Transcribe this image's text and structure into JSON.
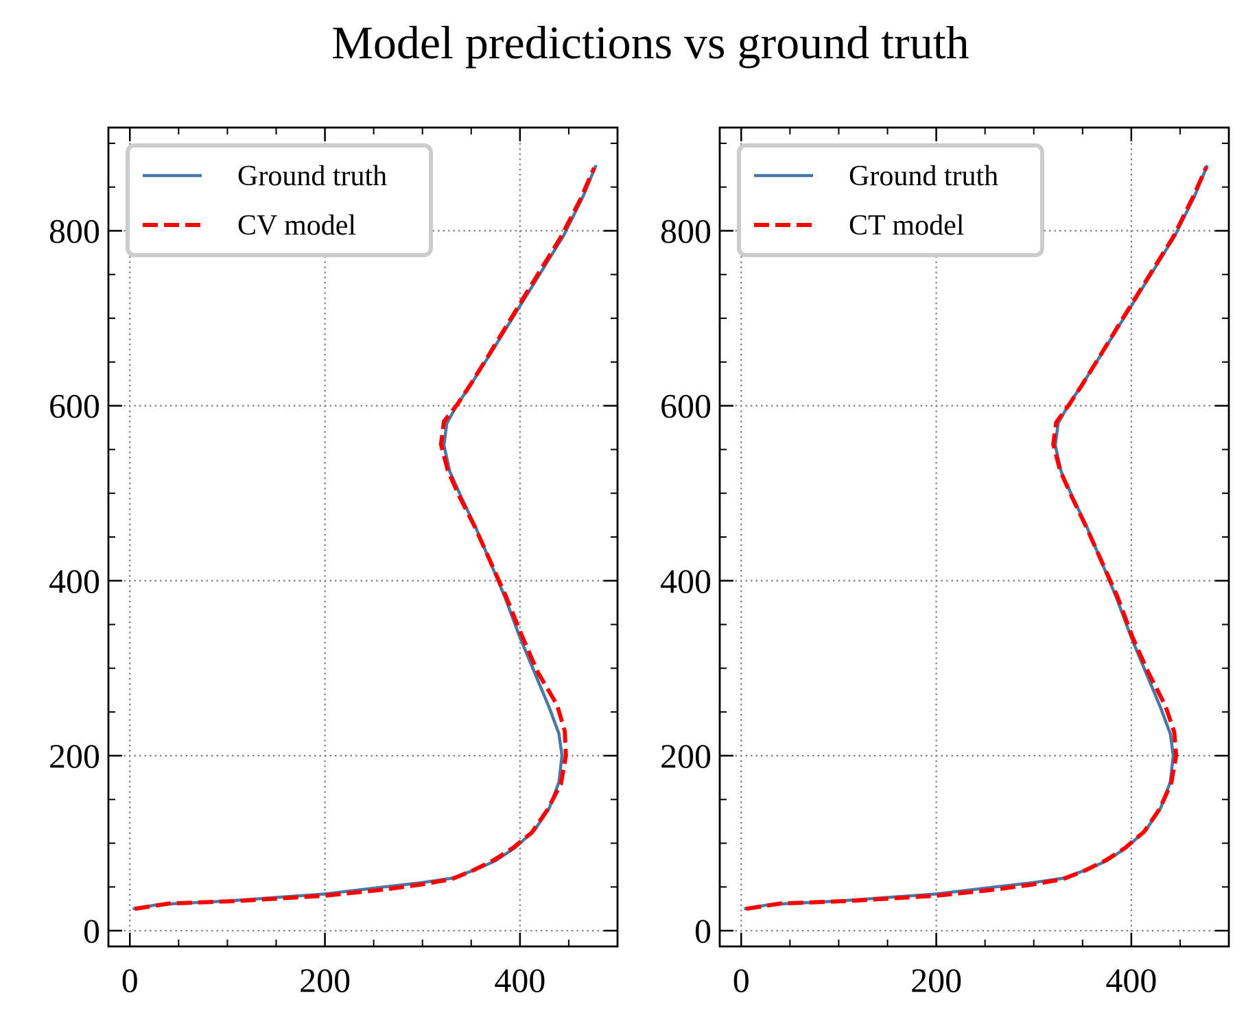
{
  "title": "Model predictions vs ground truth",
  "colors": {
    "truth": "#4878a8",
    "model": "#ff0000",
    "grid": "#7f7f7f",
    "legend_border": "#cccccc"
  },
  "chart_data": [
    {
      "type": "line",
      "title": "",
      "xlabel": "",
      "ylabel": "",
      "xlim": [
        -22,
        500
      ],
      "ylim": [
        -18,
        918
      ],
      "xticks": [
        0,
        200,
        400
      ],
      "yticks": [
        0,
        200,
        400,
        600,
        800
      ],
      "grid": true,
      "legend_position": "upper-left",
      "series": [
        {
          "name": "Ground truth",
          "style": "solid",
          "x": [
            3,
            30,
            100,
            200,
            260,
            300,
            330,
            355,
            375,
            395,
            415,
            430,
            440,
            443,
            440,
            430,
            415,
            400,
            385,
            370,
            355,
            340,
            328,
            322,
            325,
            335,
            350,
            370,
            395,
            420,
            445,
            465,
            478
          ],
          "y": [
            25,
            30,
            34,
            42,
            50,
            55,
            60,
            70,
            80,
            95,
            115,
            140,
            170,
            200,
            225,
            255,
            295,
            335,
            380,
            420,
            460,
            495,
            525,
            555,
            580,
            600,
            625,
            660,
            705,
            750,
            795,
            840,
            875
          ]
        },
        {
          "name": "CV model",
          "style": "dashed",
          "x": [
            5,
            40,
            110,
            200,
            260,
            300,
            330,
            352,
            372,
            392,
            412,
            428,
            442,
            447,
            446,
            438,
            418,
            402,
            386,
            370,
            354,
            338,
            326,
            319,
            322,
            336,
            348,
            368,
            392,
            416,
            441,
            462,
            476
          ],
          "y": [
            25,
            31,
            34,
            40,
            47,
            53,
            59,
            69,
            80,
            94,
            112,
            138,
            168,
            200,
            228,
            258,
            296,
            337,
            381,
            421,
            461,
            496,
            526,
            556,
            582,
            602,
            622,
            658,
            702,
            746,
            791,
            836,
            872
          ]
        }
      ]
    },
    {
      "type": "line",
      "title": "",
      "xlabel": "",
      "ylabel": "",
      "xlim": [
        -22,
        500
      ],
      "ylim": [
        -18,
        918
      ],
      "xticks": [
        0,
        200,
        400
      ],
      "yticks": [
        0,
        200,
        400,
        600,
        800
      ],
      "grid": true,
      "legend_position": "upper-left",
      "series": [
        {
          "name": "Ground truth",
          "style": "solid",
          "x": [
            3,
            30,
            100,
            200,
            260,
            300,
            330,
            355,
            375,
            395,
            415,
            430,
            440,
            443,
            440,
            430,
            415,
            400,
            385,
            370,
            355,
            340,
            328,
            322,
            325,
            335,
            350,
            370,
            395,
            420,
            445,
            465,
            478
          ],
          "y": [
            25,
            30,
            34,
            42,
            50,
            55,
            60,
            70,
            80,
            95,
            115,
            140,
            170,
            200,
            225,
            255,
            295,
            335,
            380,
            420,
            460,
            495,
            525,
            555,
            580,
            600,
            625,
            660,
            705,
            750,
            795,
            840,
            875
          ]
        },
        {
          "name": "CT model",
          "style": "dashed",
          "x": [
            5,
            40,
            110,
            200,
            260,
            300,
            330,
            353,
            373,
            393,
            413,
            429,
            441,
            446,
            444,
            435,
            417,
            401,
            386,
            370,
            354,
            339,
            327,
            320,
            323,
            336,
            349,
            369,
            393,
            418,
            443,
            463,
            477
          ],
          "y": [
            25,
            31,
            34,
            40,
            47,
            53,
            59,
            69,
            80,
            94,
            113,
            139,
            169,
            200,
            227,
            257,
            296,
            336,
            381,
            421,
            461,
            496,
            526,
            556,
            581,
            601,
            623,
            659,
            703,
            748,
            793,
            838,
            873
          ]
        }
      ]
    }
  ]
}
